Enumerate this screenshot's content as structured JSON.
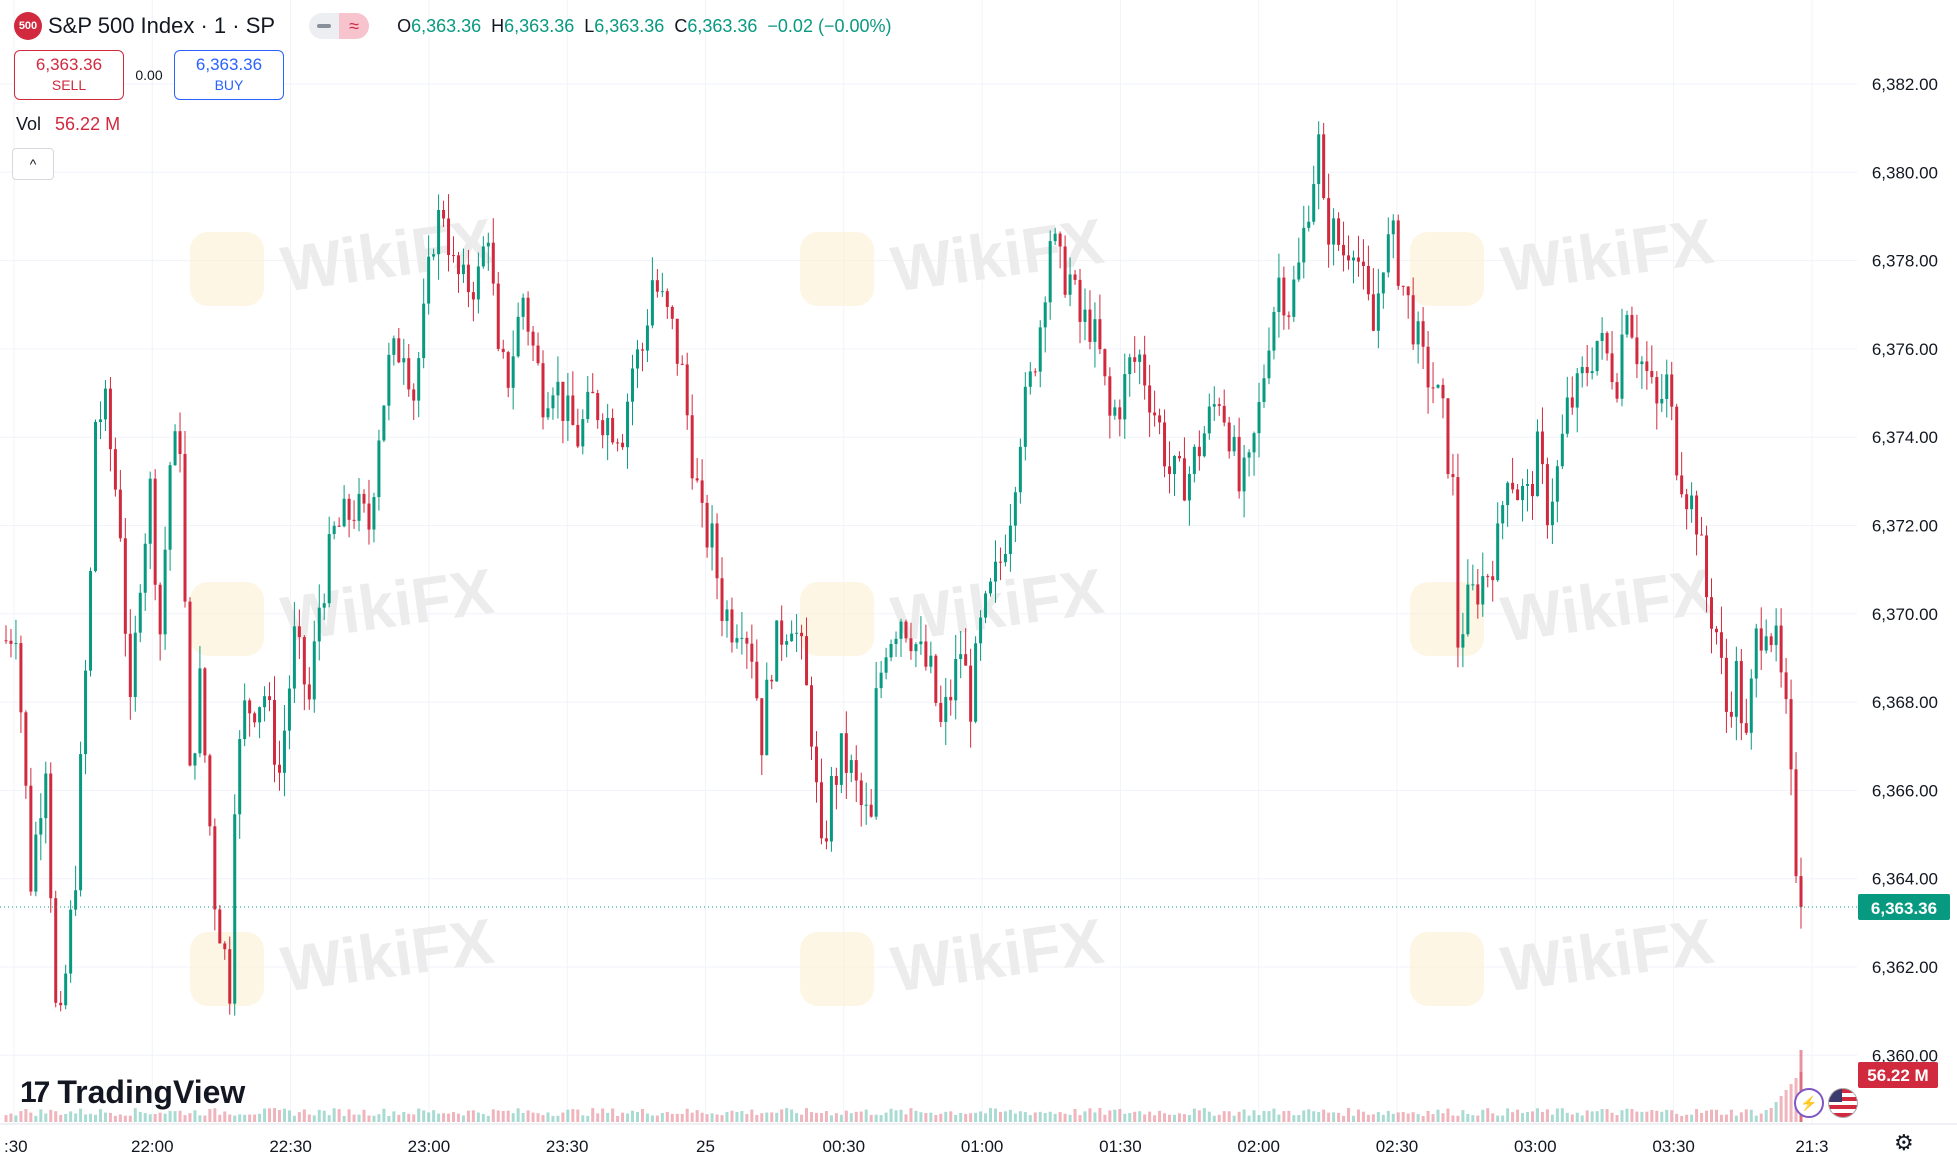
{
  "header": {
    "badge": "500",
    "title": "S&P 500 Index · 1 · SP",
    "ohlc": [
      {
        "k": "O",
        "v": "6,363.36"
      },
      {
        "k": "H",
        "v": "6,363.36"
      },
      {
        "k": "L",
        "v": "6,363.36"
      },
      {
        "k": "C",
        "v": "6,363.36"
      }
    ],
    "change": "−0.02 (−0.00%)",
    "compare_icon": "approx-icon"
  },
  "trade": {
    "sell_price": "6,363.36",
    "sell_label": "SELL",
    "spread": "0.00",
    "buy_price": "6,363.36",
    "buy_label": "BUY"
  },
  "volume": {
    "label": "Vol",
    "value": "56.22 M"
  },
  "collapse_icon": "^",
  "logo": {
    "mark": "17",
    "text": "TradingView"
  },
  "colors": {
    "up": "#089981",
    "down": "#d1293e",
    "accent": "#2962ff"
  },
  "chart_data": {
    "type": "candlestick",
    "interval": "1",
    "y_ticks": [
      "6,382.00",
      "6,380.00",
      "6,378.00",
      "6,376.00",
      "6,374.00",
      "6,372.00",
      "6,370.00",
      "6,368.00",
      "6,366.00",
      "6,364.00",
      "6,362.00",
      "6,360.00"
    ],
    "y_tick_values": [
      6382,
      6380,
      6378,
      6376,
      6374,
      6372,
      6370,
      6368,
      6366,
      6364,
      6362,
      6360
    ],
    "ylim": [
      6359.3,
      6384.1
    ],
    "x_ticks": [
      ":30",
      "22:00",
      "22:30",
      "23:00",
      "23:30",
      "25",
      "00:30",
      "01:00",
      "01:30",
      "02:00",
      "02:30",
      "03:00",
      "03:30",
      "21:3"
    ],
    "last_price": 6363.36,
    "last_price_label": "6,363.36",
    "last_volume_label": "56.22 M",
    "watermark": "WikiFX",
    "path": [
      [
        0,
        6369.4
      ],
      [
        2,
        6369.8
      ],
      [
        5,
        6364.0
      ],
      [
        8,
        6366.8
      ],
      [
        10,
        6361.0
      ],
      [
        11,
        6360.6
      ],
      [
        14,
        6364.2
      ],
      [
        17,
        6370.8
      ],
      [
        18,
        6374.4
      ],
      [
        20,
        6374.6
      ],
      [
        23,
        6372.0
      ],
      [
        25,
        6367.6
      ],
      [
        27,
        6371.0
      ],
      [
        29,
        6372.8
      ],
      [
        31,
        6369.6
      ],
      [
        33,
        6373.4
      ],
      [
        35,
        6374.0
      ],
      [
        37,
        6366.2
      ],
      [
        39,
        6368.4
      ],
      [
        40,
        6366.8
      ],
      [
        42,
        6363.6
      ],
      [
        45,
        6361.6
      ],
      [
        46,
        6366.0
      ],
      [
        48,
        6367.8
      ],
      [
        52,
        6368.2
      ],
      [
        55,
        6366.4
      ],
      [
        58,
        6369.4
      ],
      [
        61,
        6368.0
      ],
      [
        63,
        6370.2
      ],
      [
        66,
        6371.8
      ],
      [
        70,
        6372.4
      ],
      [
        73,
        6372.0
      ],
      [
        75,
        6374.2
      ],
      [
        77,
        6375.6
      ],
      [
        80,
        6376.2
      ],
      [
        82,
        6375.0
      ],
      [
        84,
        6376.6
      ],
      [
        86,
        6378.6
      ],
      [
        88,
        6379.2
      ],
      [
        90,
        6377.8
      ],
      [
        92,
        6377.4
      ],
      [
        95,
        6377.6
      ],
      [
        97,
        6378.8
      ],
      [
        99,
        6375.6
      ],
      [
        101,
        6375.4
      ],
      [
        104,
        6377.2
      ],
      [
        106,
        6376.0
      ],
      [
        108,
        6375.0
      ],
      [
        110,
        6375.4
      ],
      [
        113,
        6374.4
      ],
      [
        115,
        6374.0
      ],
      [
        118,
        6374.8
      ],
      [
        121,
        6374.4
      ],
      [
        124,
        6374.2
      ],
      [
        126,
        6375.6
      ],
      [
        128,
        6376.0
      ],
      [
        130,
        6377.6
      ],
      [
        132,
        6377.0
      ],
      [
        134,
        6376.4
      ],
      [
        136,
        6375.4
      ],
      [
        138,
        6373.6
      ],
      [
        140,
        6372.0
      ],
      [
        142,
        6371.6
      ],
      [
        144,
        6370.2
      ],
      [
        146,
        6369.8
      ],
      [
        148,
        6370.0
      ],
      [
        150,
        6369.2
      ],
      [
        152,
        6367.2
      ],
      [
        154,
        6369.0
      ],
      [
        156,
        6369.6
      ],
      [
        158,
        6370.0
      ],
      [
        160,
        6369.0
      ],
      [
        162,
        6367.4
      ],
      [
        164,
        6364.4
      ],
      [
        166,
        6366.0
      ],
      [
        168,
        6366.8
      ],
      [
        170,
        6366.4
      ],
      [
        172,
        6365.6
      ],
      [
        174,
        6365.2
      ],
      [
        175,
        6368.0
      ],
      [
        177,
        6369.4
      ],
      [
        180,
        6370.0
      ],
      [
        182,
        6369.6
      ],
      [
        184,
        6369.0
      ],
      [
        186,
        6368.6
      ],
      [
        188,
        6367.4
      ],
      [
        190,
        6368.2
      ],
      [
        192,
        6369.2
      ],
      [
        194,
        6368.0
      ],
      [
        196,
        6369.6
      ],
      [
        198,
        6370.4
      ],
      [
        200,
        6371.2
      ],
      [
        202,
        6372.4
      ],
      [
        204,
        6374.2
      ],
      [
        206,
        6375.2
      ],
      [
        208,
        6376.6
      ],
      [
        210,
        6378.6
      ],
      [
        212,
        6377.8
      ],
      [
        214,
        6377.6
      ],
      [
        216,
        6376.6
      ],
      [
        218,
        6376.6
      ],
      [
        220,
        6375.8
      ],
      [
        222,
        6374.4
      ],
      [
        224,
        6374.8
      ],
      [
        226,
        6375.6
      ],
      [
        228,
        6375.8
      ],
      [
        230,
        6375.0
      ],
      [
        232,
        6374.2
      ],
      [
        234,
        6373.2
      ],
      [
        236,
        6373.0
      ],
      [
        238,
        6373.2
      ],
      [
        240,
        6373.8
      ],
      [
        242,
        6374.4
      ],
      [
        244,
        6375.0
      ],
      [
        246,
        6374.2
      ],
      [
        248,
        6372.8
      ],
      [
        250,
        6373.2
      ],
      [
        252,
        6374.6
      ],
      [
        254,
        6376.4
      ],
      [
        256,
        6377.6
      ],
      [
        258,
        6377.0
      ],
      [
        260,
        6377.8
      ],
      [
        262,
        6379.4
      ],
      [
        264,
        6380.6
      ],
      [
        265,
        6379.0
      ],
      [
        267,
        6378.6
      ],
      [
        269,
        6378.2
      ],
      [
        271,
        6378.6
      ],
      [
        273,
        6377.4
      ],
      [
        275,
        6376.4
      ],
      [
        277,
        6378.2
      ],
      [
        279,
        6378.4
      ],
      [
        281,
        6377.4
      ],
      [
        283,
        6376.6
      ],
      [
        285,
        6375.6
      ],
      [
        287,
        6375.2
      ],
      [
        289,
        6374.4
      ],
      [
        291,
        6372.8
      ],
      [
        292,
        6369.4
      ],
      [
        294,
        6370.2
      ],
      [
        296,
        6370.6
      ],
      [
        298,
        6371.0
      ],
      [
        300,
        6371.6
      ],
      [
        302,
        6373.4
      ],
      [
        304,
        6372.8
      ],
      [
        306,
        6372.6
      ],
      [
        308,
        6373.6
      ],
      [
        310,
        6372.4
      ],
      [
        312,
        6373.2
      ],
      [
        314,
        6374.6
      ],
      [
        316,
        6375.0
      ],
      [
        318,
        6375.6
      ],
      [
        320,
        6376.2
      ],
      [
        322,
        6375.8
      ],
      [
        324,
        6375.4
      ],
      [
        326,
        6377.2
      ],
      [
        328,
        6376.0
      ],
      [
        330,
        6375.4
      ],
      [
        332,
        6374.6
      ],
      [
        334,
        6375.2
      ],
      [
        336,
        6373.6
      ],
      [
        338,
        6372.8
      ],
      [
        340,
        6372.2
      ],
      [
        342,
        6370.4
      ],
      [
        344,
        6369.6
      ],
      [
        346,
        6367.8
      ],
      [
        348,
        6368.6
      ],
      [
        350,
        6367.0
      ],
      [
        352,
        6369.4
      ],
      [
        354,
        6370.0
      ],
      [
        356,
        6369.2
      ],
      [
        358,
        6367.6
      ],
      [
        359,
        6366.0
      ],
      [
        360,
        6364.4
      ],
      [
        361,
        6363.36
      ]
    ]
  }
}
